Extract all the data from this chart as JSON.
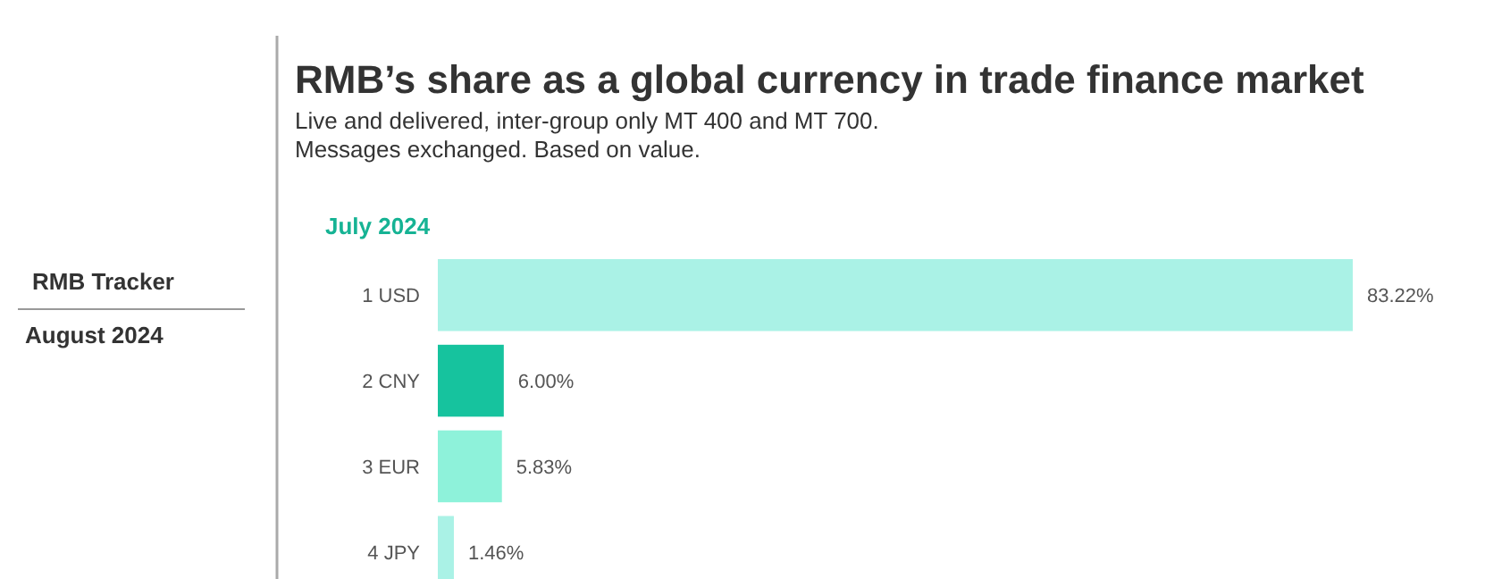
{
  "chart_data": {
    "type": "bar",
    "orientation": "horizontal",
    "title": "RMB’s share as a global currency in trade finance market",
    "subtitle": "July 2024",
    "annotations": [
      "Live and delivered, inter-group only MT 400 and MT 700.",
      "Messages exchanged. Based on value.",
      "RMB Tracker",
      "August 2024"
    ],
    "categories": [
      "1 USD",
      "2 CNY",
      "3 EUR",
      "4 JPY"
    ],
    "values": [
      83.22,
      6.0,
      5.83,
      1.46
    ],
    "colors": [
      "#aaf2e6",
      "#16c39e",
      "#8ef2da",
      "#aaf2e6"
    ],
    "value_labels": [
      "83.22%",
      "6.00%",
      "5.83%",
      "1.46%"
    ]
  }
}
